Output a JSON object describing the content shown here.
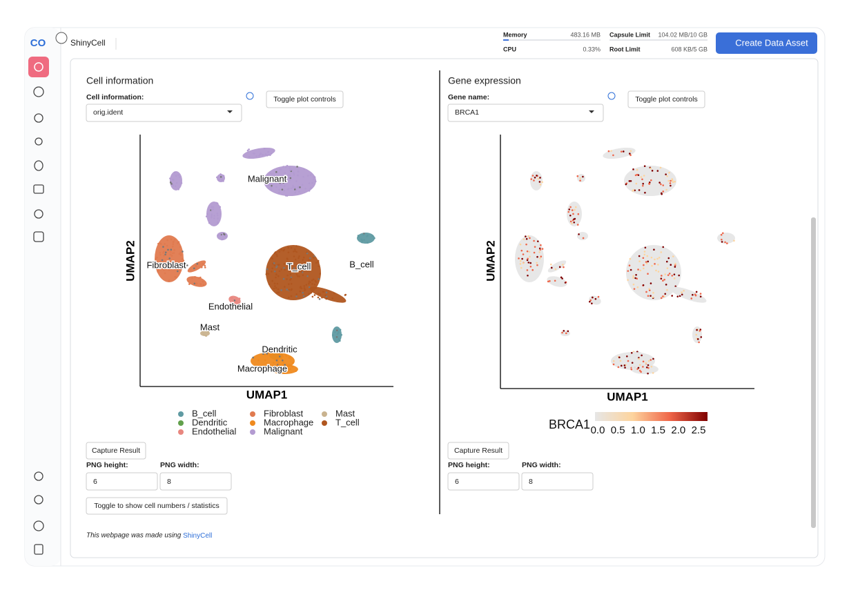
{
  "header": {
    "app_name": "ShinyCell",
    "memory_label": "Memory",
    "memory_value": "483.16 MB",
    "cpu_label": "CPU",
    "cpu_value": "0.33%",
    "capsule_label": "Capsule Limit",
    "capsule_value": "104.02 MB/10 GB",
    "root_label": "Root Limit",
    "root_value": "608 KB/5 GB",
    "button": "Create Data Asset"
  },
  "left_panel": {
    "title": "Cell information",
    "select_label": "Cell information:",
    "select_value": "orig.ident",
    "toggle_button": "Toggle plot controls",
    "plot": {
      "x_label": "UMAP1",
      "y_label": "UMAP2",
      "legend": [
        {
          "name": "B_cell",
          "color": "#5f9aa2"
        },
        {
          "name": "Dendritic",
          "color": "#62a04c"
        },
        {
          "name": "Endothelial",
          "color": "#e8877f"
        },
        {
          "name": "Fibroblast",
          "color": "#e07a4f"
        },
        {
          "name": "Macrophage",
          "color": "#ef8a1f"
        },
        {
          "name": "Malignant",
          "color": "#b39bd1"
        },
        {
          "name": "Mast",
          "color": "#c9b38f"
        },
        {
          "name": "T_cell",
          "color": "#b0561f"
        }
      ]
    },
    "capture_button": "Capture Result",
    "png_height_label": "PNG height:",
    "png_height": "6",
    "png_width_label": "PNG width:",
    "png_width": "8",
    "stats_button": "Toggle to show cell numbers / statistics"
  },
  "right_panel": {
    "title": "Gene expression",
    "select_label": "Gene name:",
    "select_value": "BRCA1",
    "toggle_button": "Toggle plot controls",
    "plot": {
      "x_label": "UMAP1",
      "y_label": "UMAP2",
      "colorbar_title": "BRCA1",
      "colorbar_ticks": [
        "0.0",
        "0.5",
        "1.0",
        "1.5",
        "2.0",
        "2.5"
      ],
      "colors": [
        "#e6e6e6",
        "#fdd49e",
        "#ef6548",
        "#7f0000"
      ]
    },
    "capture_button": "Capture Result",
    "png_height_label": "PNG height:",
    "png_height": "6",
    "png_width_label": "PNG width:",
    "png_width": "8"
  },
  "footer": {
    "text": "This webpage was made using",
    "link": "ShinyCell"
  }
}
